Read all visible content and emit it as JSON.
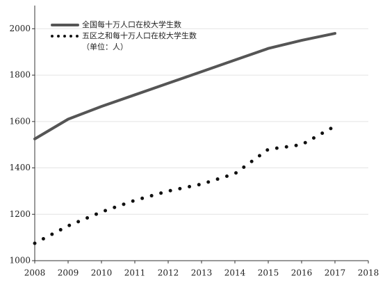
{
  "chart_data": {
    "type": "line",
    "x": [
      2008,
      2009,
      2010,
      2011,
      2012,
      2013,
      2014,
      2015,
      2016,
      2017
    ],
    "series": [
      {
        "name": "全国每十万人口在校大学生数",
        "color": "#555555",
        "style": "solid",
        "values": [
          1525,
          1610,
          1665,
          1715,
          1765,
          1815,
          1865,
          1915,
          1950,
          1980
        ]
      },
      {
        "name": "五区之和每十万人口在校大学生数",
        "color": "#111111",
        "style": "dotted",
        "values": [
          1075,
          1150,
          1210,
          1260,
          1300,
          1330,
          1375,
          1480,
          1500,
          1580
        ]
      }
    ],
    "annotation": "（单位：人）",
    "xlim": [
      2008,
      2018
    ],
    "xticks": [
      2008,
      2009,
      2010,
      2011,
      2012,
      2013,
      2014,
      2015,
      2016,
      2017,
      2018
    ],
    "ylim": [
      1000,
      2100
    ],
    "yticks": [
      1000,
      1200,
      1400,
      1600,
      1800,
      2000
    ],
    "grid": true
  }
}
